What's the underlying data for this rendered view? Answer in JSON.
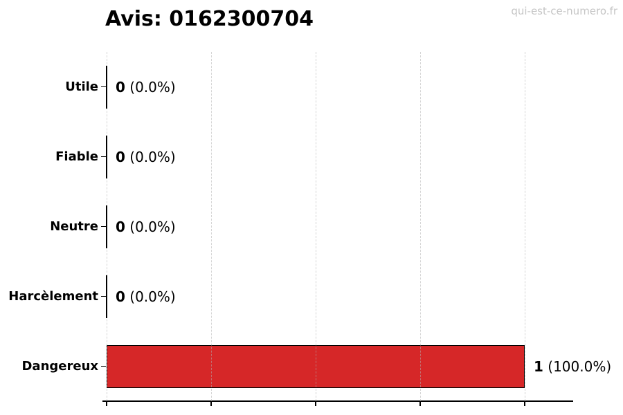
{
  "title": "Avis: 0162300704",
  "watermark": "qui-est-ce-numero.fr",
  "colors": {
    "bar_fill": "#d62728",
    "bar_edge": "#000000",
    "grid_line": "#b0b0b0",
    "axis": "#000000",
    "text": "#000000",
    "watermark_text": "#c5c5c5",
    "background": "#ffffff"
  },
  "chart_data": {
    "type": "bar",
    "orientation": "horizontal",
    "title": "Avis: 0162300704",
    "categories": [
      "Utile",
      "Fiable",
      "Neutre",
      "Harcèlement",
      "Dangereux"
    ],
    "values": [
      0,
      0,
      0,
      0,
      1
    ],
    "percentages": [
      0.0,
      0.0,
      0.0,
      0.0,
      100.0
    ],
    "value_labels": [
      {
        "count": "0",
        "pct": "(0.0%)"
      },
      {
        "count": "0",
        "pct": "(0.0%)"
      },
      {
        "count": "0",
        "pct": "(0.0%)"
      },
      {
        "count": "0",
        "pct": "(0.0%)"
      },
      {
        "count": "1",
        "pct": "(100.0%)"
      }
    ],
    "xlim": [
      0,
      1.11
    ],
    "x_ticks": [
      0,
      0.25,
      0.5,
      0.75,
      1.0
    ],
    "x_tick_labels_visible": false,
    "ylabel": "",
    "xlabel": "",
    "grid": {
      "axis": "x",
      "style": "dashed",
      "drawn_over_bars": true
    },
    "legend_position": "none",
    "bar_fill_color": "#d62728",
    "bar_edge_color": "#000000"
  }
}
